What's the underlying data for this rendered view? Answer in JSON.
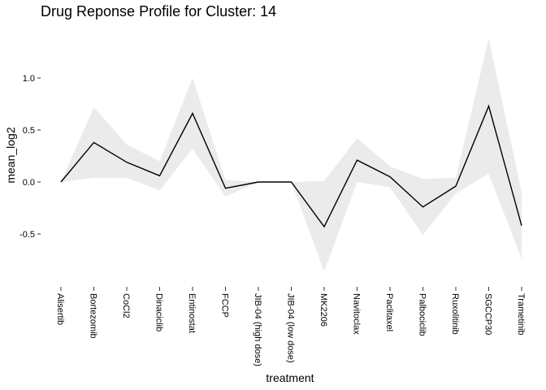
{
  "chart_data": {
    "type": "line",
    "title": "Drug Reponse Profile for Cluster:  14",
    "xlabel": "treatment",
    "ylabel": "mean_log2",
    "categories": [
      "Alisertib",
      "Bortezomib",
      "CoCl2",
      "Dinaciclib",
      "Entinostat",
      "FCCP",
      "JIB-04 (high dose)",
      "JIB-04 (low dose)",
      "MK2206",
      "Navitoclax",
      "Paclitaxel",
      "Palbociclib",
      "Ruxolitinib",
      "SGCCP30",
      "Trametinib"
    ],
    "series": [
      {
        "values": [
          0.0,
          0.38,
          0.19,
          0.06,
          0.66,
          -0.06,
          0.0,
          0.0,
          -0.43,
          0.21,
          0.05,
          -0.24,
          -0.04,
          0.73,
          -0.42
        ],
        "lower": [
          0.0,
          0.04,
          0.04,
          -0.08,
          0.32,
          -0.14,
          0.0,
          0.0,
          -0.86,
          0.0,
          -0.05,
          -0.51,
          -0.11,
          0.08,
          -0.74
        ],
        "upper": [
          0.0,
          0.72,
          0.36,
          0.2,
          1.0,
          0.02,
          0.0,
          0.0,
          0.01,
          0.42,
          0.15,
          0.03,
          0.04,
          1.38,
          -0.1
        ]
      }
    ],
    "yticks": [
      1.0,
      0.5,
      0.0,
      -0.5
    ],
    "ytick_labels": [
      "1.0",
      "0.5",
      "0.0",
      "-0.5"
    ],
    "ylim": [
      -0.9,
      1.42
    ],
    "grid": false,
    "legend": "none",
    "colors": {
      "line": "#000000",
      "ribbon": "#ebebeb",
      "background": "#ffffff"
    }
  }
}
